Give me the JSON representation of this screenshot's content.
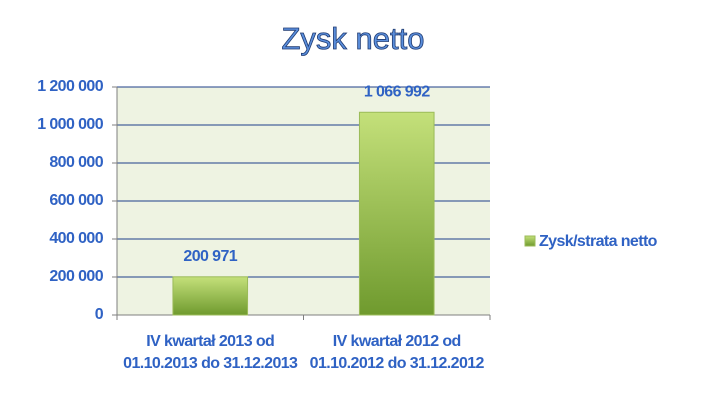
{
  "chart_data": {
    "type": "bar",
    "title": "Zysk netto",
    "categories": [
      "IV kwartał 2013 od 01.10.2013 do 31.12.2013",
      "IV kwartał 2012 od 01.10.2012 do 31.12.2012"
    ],
    "series": [
      {
        "name": "Zysk/strata netto",
        "color": "#9bbb59",
        "values": [
          200971,
          1066992
        ],
        "value_labels": [
          "200 971",
          "1 066 992"
        ]
      }
    ],
    "ylim": [
      0,
      1200000
    ],
    "yticks": [
      0,
      {
        "value": 200000,
        "label": "200 000"
      },
      {
        "value": 400000,
        "label": "400 000"
      },
      {
        "value": 600000,
        "label": "600 000"
      },
      {
        "value": 800000,
        "label": "800 000"
      },
      {
        "value": 1000000,
        "label": "1 000 000"
      },
      {
        "value": 1200000,
        "label": "1 200 000"
      }
    ],
    "grid": true,
    "legend": "right"
  }
}
